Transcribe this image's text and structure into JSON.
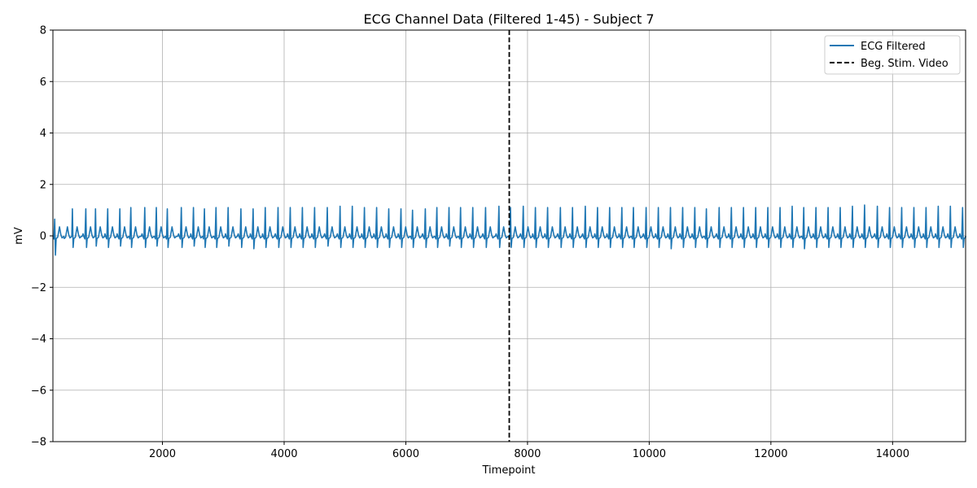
{
  "chart_data": {
    "type": "line",
    "title": "ECG Channel Data (Filtered 1-45) - Subject 7",
    "xlabel": "Timepoint",
    "ylabel": "mV",
    "xlim": [
      200,
      15200
    ],
    "ylim": [
      -8,
      8
    ],
    "x_ticks": [
      2000,
      4000,
      6000,
      8000,
      10000,
      12000,
      14000
    ],
    "y_ticks": [
      -8,
      -6,
      -4,
      -2,
      0,
      2,
      4,
      6,
      8
    ],
    "grid": true,
    "legend_position": "top-right",
    "colors": {
      "ecg": "#1f77b4",
      "marker": "#000000",
      "grid": "#b0b0b0"
    },
    "series": [
      {
        "name": "ECG Filtered",
        "kind": "ecg-trace",
        "x_start": 200,
        "x_end": 15200,
        "baseline": 0.0,
        "beat_times": [
          230,
          360,
          520,
          740,
          900,
          1100,
          1300,
          1480,
          1710,
          1900,
          2080,
          2310,
          2510,
          2690,
          2880,
          3080,
          3290,
          3490,
          3690,
          3900,
          4100,
          4300,
          4500,
          4710,
          4920,
          5120,
          5320,
          5520,
          5720,
          5920,
          6110,
          6320,
          6510,
          6710,
          6900,
          7100,
          7310,
          7530,
          7720,
          7930,
          8130,
          8330,
          8540,
          8740,
          8950,
          9150,
          9350,
          9550,
          9740,
          9950,
          10150,
          10350,
          10550,
          10750,
          10940,
          11150,
          11350,
          11550,
          11750,
          11950,
          12150,
          12350,
          12540,
          12740,
          12940,
          13140,
          13340,
          13540,
          13750,
          13950,
          14150,
          14350,
          14550,
          14750,
          14950,
          15150
        ],
        "r_peak_values": [
          0.65,
          1.0,
          1.05,
          1.05,
          1.05,
          1.05,
          1.05,
          1.1,
          1.1,
          1.1,
          1.05,
          1.1,
          1.1,
          1.05,
          1.1,
          1.1,
          1.05,
          1.05,
          1.1,
          1.1,
          1.1,
          1.1,
          1.1,
          1.1,
          1.15,
          1.15,
          1.1,
          1.1,
          1.05,
          1.05,
          1.0,
          1.05,
          1.1,
          1.1,
          1.1,
          1.1,
          1.1,
          1.15,
          1.1,
          1.15,
          1.1,
          1.1,
          1.1,
          1.1,
          1.15,
          1.1,
          1.1,
          1.1,
          1.1,
          1.1,
          1.1,
          1.1,
          1.1,
          1.1,
          1.05,
          1.1,
          1.1,
          1.1,
          1.1,
          1.1,
          1.1,
          1.15,
          1.1,
          1.1,
          1.1,
          1.1,
          1.15,
          1.2,
          1.15,
          1.1,
          1.1,
          1.1,
          1.1,
          1.15,
          1.15,
          1.1
        ],
        "s_trough_values": [
          -0.75,
          -0.45,
          -0.45,
          -0.45,
          -0.4,
          -0.45,
          -0.4,
          -0.45,
          -0.45,
          -0.4,
          -0.45,
          -0.45,
          -0.4,
          -0.45,
          -0.45,
          -0.4,
          -0.45,
          -0.5,
          -0.45,
          -0.45,
          -0.45,
          -0.45,
          -0.45,
          -0.4,
          -0.45,
          -0.45,
          -0.45,
          -0.45,
          -0.45,
          -0.45,
          -0.45,
          -0.45,
          -0.45,
          -0.4,
          -0.45,
          -0.45,
          -0.45,
          -0.45,
          -0.45,
          -0.45,
          -0.45,
          -0.45,
          -0.45,
          -0.45,
          -0.45,
          -0.45,
          -0.45,
          -0.45,
          -0.45,
          -0.45,
          -0.45,
          -0.5,
          -0.45,
          -0.45,
          -0.45,
          -0.45,
          -0.45,
          -0.45,
          -0.45,
          -0.45,
          -0.45,
          -0.45,
          -0.5,
          -0.45,
          -0.45,
          -0.45,
          -0.45,
          -0.45,
          -0.45,
          -0.45,
          -0.45,
          -0.45,
          -0.45,
          -0.45,
          -0.45,
          -0.45
        ],
        "t_wave_value": 0.35
      },
      {
        "name": "Beg. Stim. Video",
        "kind": "vertical-line",
        "x": 7700,
        "style": "dashed"
      }
    ]
  }
}
